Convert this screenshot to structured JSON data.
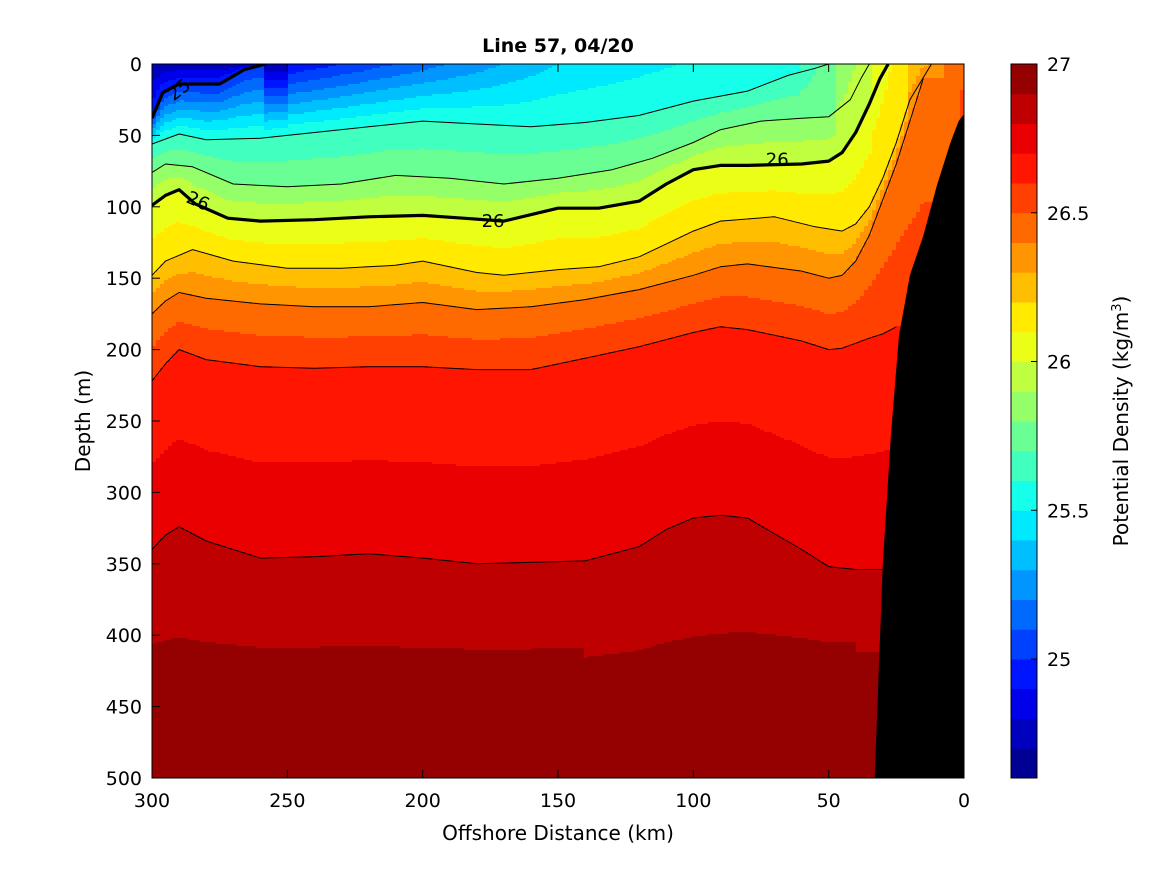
{
  "chart_data": {
    "type": "contour",
    "title": "Line 57, 04/20",
    "xlabel": "Offshore Distance (km)",
    "ylabel": "Depth (m)",
    "colorbar_label": "Potential Density (kg/m",
    "colorbar_label_sup": "3",
    "colorbar_label_end": ")",
    "xlim": [
      300,
      0
    ],
    "ylim": [
      0,
      500
    ],
    "x_ticks": [
      300,
      250,
      200,
      150,
      100,
      50,
      0
    ],
    "y_ticks": [
      0,
      50,
      100,
      150,
      200,
      250,
      300,
      350,
      400,
      450,
      500
    ],
    "clim": [
      24.6,
      27.0
    ],
    "colorbar_ticks": [
      25,
      25.5,
      26,
      26.5,
      27
    ],
    "colorbar_tick_labels": [
      "25",
      "25.5",
      "26",
      "26.5",
      "27"
    ],
    "contour_labels": [
      {
        "text": "25",
        "x": 290,
        "y": 18,
        "angle": -38
      },
      {
        "text": "26",
        "x": 283,
        "y": 96,
        "angle": 24
      },
      {
        "text": "26",
        "x": 174,
        "y": 110,
        "angle": 0
      },
      {
        "text": "26",
        "x": 69,
        "y": 67,
        "angle": 0
      }
    ],
    "isopycnals": [
      {
        "name": "sigma-25",
        "depth": [
          38,
          20,
          14,
          14,
          4,
          0
        ],
        "x": [
          300,
          296,
          290,
          275,
          266,
          258
        ]
      },
      {
        "name": "sigma-26",
        "x": [
          300,
          295,
          290,
          284,
          272,
          260,
          240,
          220,
          200,
          185,
          170,
          150,
          135,
          120,
          110,
          100,
          90,
          80,
          60,
          50,
          45,
          40,
          35,
          31,
          28
        ],
        "depth": [
          99,
          92,
          88,
          98,
          108,
          110,
          109,
          107,
          106,
          108,
          110,
          101,
          101,
          96,
          84,
          74,
          71,
          71,
          70,
          68,
          62,
          48,
          28,
          10,
          0
        ]
      },
      {
        "name": "sigma-26.2",
        "x": [
          300,
          295,
          285,
          270,
          250,
          230,
          210,
          200,
          180,
          170,
          150,
          135,
          120,
          110,
          100,
          90,
          70,
          55,
          45,
          40,
          35,
          30,
          25,
          20,
          12
        ],
        "depth": [
          148,
          138,
          130,
          138,
          143,
          143,
          141,
          138,
          146,
          148,
          144,
          142,
          135,
          126,
          117,
          110,
          107,
          114,
          117,
          112,
          100,
          80,
          55,
          25,
          0
        ]
      },
      {
        "name": "sigma-26.6",
        "x": [
          300,
          295,
          290,
          280,
          260,
          240,
          220,
          200,
          180,
          160,
          140,
          120,
          100,
          90,
          80,
          60,
          50,
          45,
          35,
          30,
          25
        ],
        "depth": [
          222,
          210,
          200,
          207,
          212,
          213,
          212,
          212,
          214,
          214,
          206,
          198,
          188,
          184,
          186,
          194,
          200,
          199,
          192,
          189,
          184
        ]
      },
      {
        "name": "sigma-26.8",
        "x": [
          300,
          295,
          290,
          280,
          260,
          240,
          220,
          200,
          180,
          160,
          140,
          120,
          110,
          100,
          90,
          80,
          60,
          50,
          40,
          30
        ],
        "depth": [
          340,
          330,
          324,
          334,
          346,
          345,
          343,
          346,
          350,
          349,
          348,
          338,
          326,
          318,
          316,
          318,
          340,
          352,
          354,
          354
        ]
      },
      {
        "name": "sigma-25.6",
        "x": [
          300,
          290,
          280,
          260,
          240,
          220,
          200,
          180,
          160,
          140,
          120,
          100,
          80,
          65,
          55,
          50,
          45,
          40
        ],
        "depth": [
          56,
          49,
          53,
          52,
          48,
          44,
          40,
          42,
          44,
          41,
          36,
          26,
          19,
          8,
          3,
          0,
          0,
          0
        ]
      },
      {
        "name": "sigma-25.8",
        "x": [
          300,
          295,
          285,
          270,
          250,
          230,
          210,
          190,
          170,
          150,
          130,
          115,
          100,
          90,
          75,
          60,
          50,
          42,
          38,
          35
        ],
        "depth": [
          76,
          70,
          72,
          84,
          86,
          84,
          78,
          80,
          84,
          80,
          74,
          66,
          55,
          46,
          40,
          38,
          37,
          25,
          10,
          0
        ]
      },
      {
        "name": "sigma-26.4",
        "x": [
          300,
          295,
          290,
          280,
          260,
          240,
          220,
          200,
          180,
          160,
          140,
          120,
          100,
          90,
          80,
          60,
          50,
          45,
          40,
          35,
          30,
          25,
          20,
          15
        ],
        "depth": [
          175,
          166,
          160,
          164,
          168,
          170,
          170,
          167,
          172,
          170,
          165,
          158,
          148,
          142,
          140,
          145,
          150,
          148,
          138,
          120,
          95,
          70,
          40,
          10
        ]
      }
    ],
    "bathymetry": {
      "x": [
        33,
        30,
        27,
        24,
        20,
        15,
        10,
        5,
        2,
        0
      ],
      "depth": [
        500,
        350,
        260,
        190,
        148,
        120,
        85,
        55,
        40,
        35
      ]
    }
  }
}
